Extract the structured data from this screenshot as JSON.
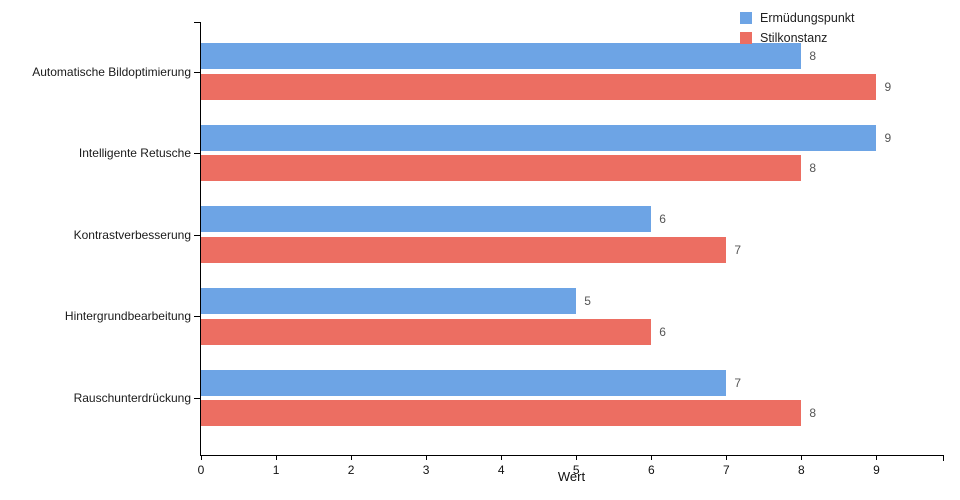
{
  "chart_data": {
    "type": "bar",
    "orientation": "horizontal",
    "title": "",
    "xlabel": "Wert",
    "ylabel": "",
    "categories": [
      "Automatische Bildoptimierung",
      "Intelligente Retusche",
      "Kontrastverbesserung",
      "Hintergrundbearbeitung",
      "Rauschunterdrückung"
    ],
    "series": [
      {
        "name": "Ermüdungspunkt",
        "color": "#6DA4E5",
        "values": [
          8,
          9,
          6,
          5,
          7
        ]
      },
      {
        "name": "Stilkonstanz",
        "color": "#EC6E62",
        "values": [
          9,
          8,
          7,
          6,
          8
        ]
      }
    ],
    "x_ticks": [
      0,
      1,
      2,
      3,
      4,
      5,
      6,
      7,
      8,
      9
    ],
    "xlim": [
      0,
      9.9
    ],
    "value_labels": true,
    "grid": false,
    "legend_position": "top-right",
    "axis_color": "#000000",
    "value_label_color": "#555555",
    "background_color": "#ffffff"
  }
}
